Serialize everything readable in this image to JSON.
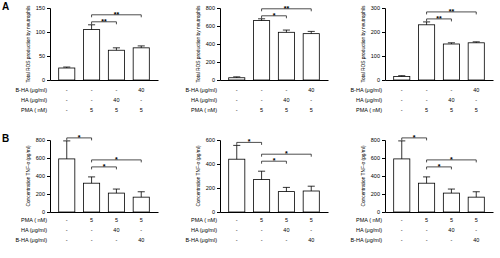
{
  "chart_data": [
    {
      "type": "bar",
      "panel": "A",
      "y_label": "Total ROS production by neutrophils",
      "categories": [
        null,
        null,
        null,
        null
      ],
      "values": [
        25,
        105,
        62,
        67
      ],
      "errors": [
        2,
        10,
        5,
        4
      ],
      "color": "#ffffff",
      "ylim": [
        0,
        150
      ],
      "yticks": [
        0,
        50,
        100,
        150
      ],
      "conditions": [
        {
          "label": "B-HA (μg/ml)",
          "values": [
            "-",
            "-",
            "-",
            "40"
          ]
        },
        {
          "label": "HA (μg/ml)",
          "values": [
            "-",
            "-",
            "40",
            "-"
          ]
        },
        {
          "label": "PMA ( nM)",
          "values": [
            "-",
            "5",
            "5",
            "5"
          ]
        }
      ],
      "annotations": [
        {
          "from": 1,
          "to": 2,
          "label": "**"
        },
        {
          "from": 1,
          "to": 3,
          "label": "**"
        }
      ]
    },
    {
      "type": "bar",
      "y_label": "Total ROS production by neutrophils",
      "categories": [
        null,
        null,
        null,
        null
      ],
      "values": [
        25,
        660,
        530,
        515
      ],
      "errors": [
        10,
        20,
        25,
        25
      ],
      "color": "#ffffff",
      "ylim": [
        0,
        800
      ],
      "yticks": [
        0,
        200,
        400,
        600,
        800
      ],
      "conditions": [
        {
          "label": "B-HA (μg/ml)",
          "values": [
            "-",
            "-",
            "-",
            "40"
          ]
        },
        {
          "label": "HA (μg/ml)",
          "values": [
            "-",
            "-",
            "40",
            "-"
          ]
        },
        {
          "label": "PMA ( nM)",
          "values": [
            "-",
            "5",
            "5",
            "5"
          ]
        }
      ],
      "annotations": [
        {
          "from": 1,
          "to": 2,
          "label": "*"
        },
        {
          "from": 1,
          "to": 3,
          "label": "**"
        }
      ]
    },
    {
      "type": "bar",
      "y_label": "Total ROS production by neutrophils",
      "categories": [
        null,
        null,
        null,
        null
      ],
      "values": [
        15,
        230,
        150,
        155
      ],
      "errors": [
        3,
        12,
        5,
        4
      ],
      "color": "#ffffff",
      "ylim": [
        0,
        300
      ],
      "yticks": [
        0,
        100,
        200,
        300
      ],
      "conditions": [
        {
          "label": "B-HA (μg/ml)",
          "values": [
            "-",
            "-",
            "-",
            "40"
          ]
        },
        {
          "label": "HA (μg/ml)",
          "values": [
            "-",
            "-",
            "40",
            "-"
          ]
        },
        {
          "label": "PMA ( nM)",
          "values": [
            "-",
            "5",
            "5",
            "5"
          ]
        }
      ],
      "annotations": [
        {
          "from": 1,
          "to": 2,
          "label": "**"
        },
        {
          "from": 1,
          "to": 3,
          "label": "**"
        }
      ]
    },
    {
      "type": "bar",
      "panel": "B",
      "y_label": "Concentration TNF-α (pg/ml)",
      "categories": [
        null,
        null,
        null,
        null
      ],
      "values": [
        590,
        320,
        210,
        165
      ],
      "errors": [
        200,
        70,
        45,
        60
      ],
      "color": "#ffffff",
      "ylim": [
        0,
        800
      ],
      "yticks": [
        0,
        200,
        400,
        600,
        800
      ],
      "conditions": [
        {
          "label": "PMA ( nM)",
          "values": [
            "-",
            "5",
            "5",
            "5"
          ]
        },
        {
          "label": "HA (μg/ml)",
          "values": [
            "-",
            "-",
            "40",
            "-"
          ]
        },
        {
          "label": "B-HA (μg/ml)",
          "values": [
            "-",
            "-",
            "-",
            "40"
          ]
        }
      ],
      "annotations": [
        {
          "from": 0,
          "to": 1,
          "label": "*"
        },
        {
          "from": 1,
          "to": 2,
          "label": "*"
        },
        {
          "from": 1,
          "to": 3,
          "label": "*"
        }
      ]
    },
    {
      "type": "bar",
      "y_label": "Concentration TNF-α (pg/ml)",
      "categories": [
        null,
        null,
        null,
        null
      ],
      "values": [
        440,
        270,
        170,
        175
      ],
      "errors": [
        115,
        70,
        35,
        40
      ],
      "color": "#ffffff",
      "ylim": [
        0,
        600
      ],
      "yticks": [
        0,
        200,
        400,
        600
      ],
      "conditions": [
        {
          "label": "PMA ( nM)",
          "values": [
            "-",
            "5",
            "5",
            "5"
          ]
        },
        {
          "label": "HA (μg/ml)",
          "values": [
            "-",
            "-",
            "40",
            "-"
          ]
        },
        {
          "label": "B-HA (μg/ml)",
          "values": [
            "-",
            "-",
            "-",
            "40"
          ]
        }
      ],
      "annotations": [
        {
          "from": 0,
          "to": 1,
          "label": "*"
        },
        {
          "from": 1,
          "to": 2,
          "label": "*"
        },
        {
          "from": 1,
          "to": 3,
          "label": "*"
        }
      ]
    },
    {
      "type": "bar",
      "y_label": "Concentration TNF-α (pg/ml)",
      "categories": [
        null,
        null,
        null,
        null
      ],
      "values": [
        590,
        320,
        210,
        165
      ],
      "errors": [
        200,
        70,
        45,
        60
      ],
      "color": "#ffffff",
      "ylim": [
        0,
        800
      ],
      "yticks": [
        0,
        200,
        400,
        600,
        800
      ],
      "conditions": [
        {
          "label": "PMA ( nM)",
          "values": [
            "-",
            "5",
            "5",
            "5"
          ]
        },
        {
          "label": "HA (μg/ml)",
          "values": [
            "-",
            "-",
            "40",
            "-"
          ]
        },
        {
          "label": "B-HA (μg/ml)",
          "values": [
            "-",
            "-",
            "-",
            "40"
          ]
        }
      ],
      "annotations": [
        {
          "from": 0,
          "to": 1,
          "label": "*"
        },
        {
          "from": 1,
          "to": 2,
          "label": "*"
        },
        {
          "from": 1,
          "to": 3,
          "label": "*"
        }
      ]
    }
  ]
}
